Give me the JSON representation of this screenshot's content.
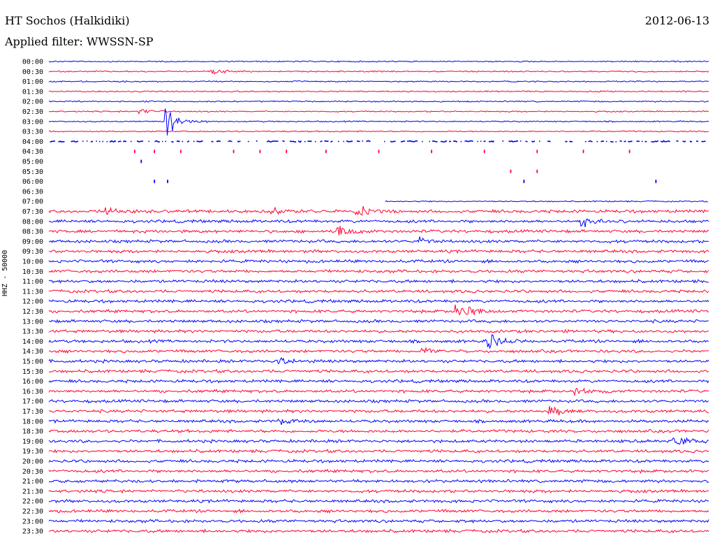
{
  "header": {
    "station": "HT Sochos (Halkidiki)",
    "date": "2012-06-13",
    "filter": "Applied filter: WWSSN-SP"
  },
  "chart_data": {
    "type": "helicorder",
    "ylabel": "HHZ - 50000",
    "time_labels": [
      "00:00",
      "00:30",
      "01:00",
      "01:30",
      "02:00",
      "02:30",
      "03:00",
      "03:30",
      "04:00",
      "04:30",
      "05:00",
      "05:30",
      "06:00",
      "06:30",
      "07:00",
      "07:30",
      "08:00",
      "08:30",
      "09:00",
      "09:30",
      "10:00",
      "10:30",
      "11:00",
      "11:30",
      "12:00",
      "12:30",
      "13:00",
      "13:30",
      "14:00",
      "14:30",
      "15:00",
      "15:30",
      "16:00",
      "16:30",
      "17:00",
      "17:30",
      "18:00",
      "18:30",
      "19:00",
      "19:30",
      "20:00",
      "20:30",
      "21:00",
      "21:30",
      "22:00",
      "22:30",
      "23:00",
      "23:30"
    ],
    "trace_colors": [
      "#0000ff",
      "#ff0033"
    ],
    "gaps": [
      {
        "row": 8,
        "mode": "dashed"
      },
      {
        "row": 9,
        "mode": "dots",
        "dots": [
          0.13,
          0.16,
          0.2,
          0.28,
          0.32,
          0.36,
          0.42,
          0.5,
          0.58,
          0.66,
          0.74,
          0.81,
          0.88
        ]
      },
      {
        "row": 10,
        "mode": "dots",
        "dots": [
          0.14
        ]
      },
      {
        "row": 11,
        "mode": "dots",
        "dots": [
          0.7,
          0.74
        ]
      },
      {
        "row": 12,
        "mode": "dots",
        "dots": [
          0.16,
          0.18,
          0.72,
          0.92
        ]
      },
      {
        "row": 13,
        "mode": "empty"
      },
      {
        "row": 14,
        "mode": "partial",
        "start": 0.51
      }
    ],
    "events": [
      {
        "row": 1,
        "x": 0.25,
        "amp": 5
      },
      {
        "row": 5,
        "x": 0.14,
        "amp": 5
      },
      {
        "row": 6,
        "x": 0.18,
        "amp": 22
      },
      {
        "row": 15,
        "x": 0.09,
        "amp": 8
      },
      {
        "row": 15,
        "x": 0.34,
        "amp": 6
      },
      {
        "row": 15,
        "x": 0.47,
        "amp": 8
      },
      {
        "row": 16,
        "x": 0.81,
        "amp": 9
      },
      {
        "row": 17,
        "x": 0.44,
        "amp": 11
      },
      {
        "row": 18,
        "x": 0.56,
        "amp": 7
      },
      {
        "row": 25,
        "x": 0.62,
        "amp": 20
      },
      {
        "row": 28,
        "x": 0.67,
        "amp": 11
      },
      {
        "row": 29,
        "x": 0.57,
        "amp": 5
      },
      {
        "row": 30,
        "x": 0.35,
        "amp": 7
      },
      {
        "row": 33,
        "x": 0.8,
        "amp": 6
      },
      {
        "row": 35,
        "x": 0.76,
        "amp": 9
      },
      {
        "row": 36,
        "x": 0.35,
        "amp": 7
      },
      {
        "row": 38,
        "x": 0.95,
        "amp": 10
      }
    ]
  }
}
